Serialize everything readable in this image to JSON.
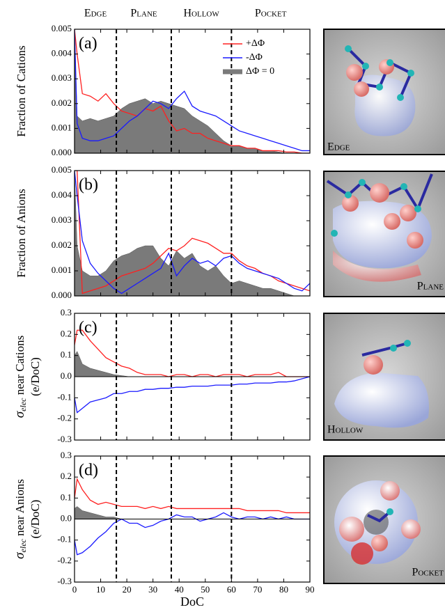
{
  "regions": {
    "labels": [
      "Edge",
      "Plane",
      "Hollow",
      "Pocket"
    ],
    "boundaries": [
      16,
      37,
      60
    ]
  },
  "images": [
    {
      "label": "Edge"
    },
    {
      "label": "Plane"
    },
    {
      "label": "Hollow"
    },
    {
      "label": "Pocket"
    }
  ],
  "chart_data": [
    {
      "type": "line",
      "panel_label": "(a)",
      "y_label": "Fraction of Cations",
      "legend": "upper right",
      "xlim": [
        0,
        90
      ],
      "xticks": [
        0,
        10,
        20,
        30,
        40,
        50,
        60,
        70,
        80,
        90
      ],
      "ylim": [
        0,
        0.005
      ],
      "yticks": [
        {
          "value": 0,
          "label": "0.000"
        },
        {
          "value": 0.001,
          "label": "0.001"
        },
        {
          "value": 0.002,
          "label": "0.002"
        },
        {
          "value": 0.003,
          "label": "0.003"
        },
        {
          "value": 0.004,
          "label": "0.004"
        },
        {
          "value": 0.005,
          "label": "0.005"
        }
      ],
      "x": [
        0,
        1,
        3,
        6,
        9,
        12,
        15,
        18,
        21,
        24,
        27,
        30,
        33,
        36,
        39,
        42,
        45,
        48,
        51,
        54,
        57,
        60,
        63,
        66,
        69,
        72,
        75,
        78,
        81,
        84,
        87,
        90
      ],
      "series": [
        {
          "name": "ΔΦ = 0",
          "kind": "area",
          "color": "#7a7a7a",
          "values": [
            0.005,
            0.0015,
            0.0013,
            0.0014,
            0.0013,
            0.0014,
            0.0015,
            0.0018,
            0.002,
            0.0021,
            0.0022,
            0.002,
            0.0021,
            0.002,
            0.0019,
            0.0018,
            0.0015,
            0.0013,
            0.0011,
            0.0008,
            0.0005,
            0.0003,
            0.0003,
            0.0002,
            0.0002,
            0.0001,
            0.0001,
            5e-05,
            0,
            0,
            0,
            0
          ]
        },
        {
          "name": "+ΔΦ",
          "kind": "line",
          "color": "#ff2020",
          "values": [
            0.005,
            0.004,
            0.0024,
            0.0023,
            0.0021,
            0.0024,
            0.002,
            0.0017,
            0.0016,
            0.0015,
            0.0018,
            0.0017,
            0.0019,
            0.0013,
            0.0009,
            0.001,
            0.0008,
            0.0008,
            0.0006,
            0.0005,
            0.0004,
            0.0003,
            0.0003,
            0.0002,
            0.0002,
            0.0001,
            0.0001,
            0.0001,
            5e-05,
            5e-05,
            0,
            0
          ]
        },
        {
          "name": "-ΔΦ",
          "kind": "line",
          "color": "#1a1aff",
          "values": [
            0.005,
            0.0012,
            0.0006,
            0.0005,
            0.0005,
            0.0006,
            0.0007,
            0.001,
            0.0013,
            0.0015,
            0.0018,
            0.0021,
            0.002,
            0.0018,
            0.0022,
            0.0025,
            0.0019,
            0.0017,
            0.0016,
            0.0015,
            0.0013,
            0.0011,
            0.0009,
            0.0008,
            0.0007,
            0.0006,
            0.0005,
            0.0004,
            0.0003,
            0.0002,
            0.0001,
            0.0001
          ]
        }
      ]
    },
    {
      "type": "line",
      "panel_label": "(b)",
      "y_label": "Fraction of Anions",
      "xlim": [
        0,
        90
      ],
      "xticks": [
        0,
        10,
        20,
        30,
        40,
        50,
        60,
        70,
        80,
        90
      ],
      "ylim": [
        0,
        0.005
      ],
      "yticks": [
        {
          "value": 0,
          "label": "0.000"
        },
        {
          "value": 0.001,
          "label": "0.001"
        },
        {
          "value": 0.002,
          "label": "0.002"
        },
        {
          "value": 0.003,
          "label": "0.003"
        },
        {
          "value": 0.004,
          "label": "0.004"
        },
        {
          "value": 0.005,
          "label": "0.005"
        }
      ],
      "x": [
        0,
        1,
        3,
        6,
        9,
        12,
        15,
        18,
        21,
        24,
        27,
        30,
        33,
        36,
        39,
        42,
        45,
        48,
        51,
        54,
        57,
        60,
        63,
        66,
        69,
        72,
        75,
        78,
        81,
        84,
        87,
        90
      ],
      "series": [
        {
          "kind": "area",
          "color": "#7a7a7a",
          "values": [
            0.005,
            0.002,
            0.001,
            0.0008,
            0.0008,
            0.001,
            0.0014,
            0.0016,
            0.0017,
            0.0019,
            0.002,
            0.002,
            0.0015,
            0.0012,
            0.0018,
            0.0015,
            0.0017,
            0.0012,
            0.001,
            0.0012,
            0.0008,
            0.0005,
            0.0006,
            0.0005,
            0.0004,
            0.0003,
            0.0003,
            0.0002,
            0.0001,
            0,
            0,
            0
          ]
        },
        {
          "kind": "line",
          "color": "#ff2020",
          "values": [
            0.005,
            0.005,
            0.0001,
            0.0002,
            0.0003,
            0.0004,
            0.0006,
            0.0008,
            0.0009,
            0.001,
            0.0011,
            0.0013,
            0.0016,
            0.0019,
            0.0018,
            0.002,
            0.0023,
            0.0022,
            0.0021,
            0.0019,
            0.0017,
            0.0017,
            0.0014,
            0.0012,
            0.0011,
            0.0009,
            0.0008,
            0.0006,
            0.0005,
            0.0004,
            0.0003,
            0.0002
          ]
        },
        {
          "kind": "line",
          "color": "#1a1aff",
          "values": [
            0.005,
            0.004,
            0.0022,
            0.0013,
            0.0009,
            0.0006,
            0.0003,
            0.0001,
            0.0003,
            0.0005,
            0.0007,
            0.0009,
            0.0011,
            0.0017,
            0.0008,
            0.0012,
            0.0015,
            0.0013,
            0.0014,
            0.0012,
            0.0015,
            0.0016,
            0.0013,
            0.0011,
            0.001,
            0.0009,
            0.0008,
            0.0007,
            0.0005,
            0.0003,
            0.0002,
            0.0005
          ]
        }
      ]
    },
    {
      "type": "line",
      "panel_label": "(c)",
      "y_label": {
        "symbol": "σ",
        "subscript": "elec",
        "text": " near Cations"
      },
      "y_label_units": "(e/DoC)",
      "xlim": [
        0,
        90
      ],
      "xticks": [
        0,
        10,
        20,
        30,
        40,
        50,
        60,
        70,
        80,
        90
      ],
      "ylim": [
        -0.3,
        0.3
      ],
      "yticks": [
        -0.3,
        -0.2,
        -0.1,
        {
          "value": 0,
          "label": "0.0"
        },
        0.1,
        0.2,
        0.3
      ],
      "x": [
        0,
        1,
        3,
        6,
        9,
        12,
        15,
        18,
        21,
        24,
        27,
        30,
        33,
        36,
        39,
        42,
        45,
        48,
        51,
        54,
        57,
        60,
        63,
        66,
        69,
        72,
        75,
        78,
        81,
        84,
        87,
        90
      ],
      "series": [
        {
          "kind": "area",
          "color": "#7a7a7a",
          "values": [
            0.1,
            0.12,
            0.06,
            0.04,
            0.03,
            0.02,
            0.01,
            0.005,
            0,
            0,
            0,
            0,
            0,
            0,
            0,
            0,
            0,
            0,
            0,
            0,
            0,
            0,
            0,
            0,
            0,
            0,
            0,
            0,
            0,
            0,
            0,
            0
          ]
        },
        {
          "kind": "line",
          "color": "#ff2020",
          "values": [
            0.15,
            0.22,
            0.22,
            0.17,
            0.13,
            0.09,
            0.07,
            0.05,
            0.04,
            0.02,
            0.01,
            0.01,
            0.01,
            0,
            0.01,
            0.01,
            0,
            0.01,
            0.01,
            0,
            0.01,
            0.01,
            0.01,
            0,
            0.01,
            0.01,
            0.01,
            0.02,
            0,
            0,
            0,
            0
          ]
        },
        {
          "kind": "line",
          "color": "#1a1aff",
          "values": [
            -0.1,
            -0.17,
            -0.15,
            -0.12,
            -0.11,
            -0.1,
            -0.08,
            -0.08,
            -0.07,
            -0.07,
            -0.06,
            -0.06,
            -0.055,
            -0.055,
            -0.05,
            -0.05,
            -0.045,
            -0.045,
            -0.045,
            -0.04,
            -0.04,
            -0.04,
            -0.035,
            -0.035,
            -0.03,
            -0.03,
            -0.03,
            -0.025,
            -0.025,
            -0.02,
            -0.01,
            0
          ]
        }
      ]
    },
    {
      "type": "line",
      "panel_label": "(d)",
      "y_label": {
        "symbol": "σ",
        "subscript": "elec",
        "text": " near Anions"
      },
      "y_label_units": "(e/DoC)",
      "x_label": "DoC",
      "xlim": [
        0,
        90
      ],
      "xticks": [
        0,
        10,
        20,
        30,
        40,
        50,
        60,
        70,
        80,
        90
      ],
      "ylim": [
        -0.3,
        0.3
      ],
      "yticks": [
        -0.3,
        -0.2,
        -0.1,
        {
          "value": 0,
          "label": "0.0"
        },
        0.1,
        0.2,
        0.3
      ],
      "x": [
        0,
        1,
        3,
        6,
        9,
        12,
        15,
        18,
        21,
        24,
        27,
        30,
        33,
        36,
        39,
        42,
        45,
        48,
        51,
        54,
        57,
        60,
        63,
        66,
        69,
        72,
        75,
        78,
        81,
        84,
        87,
        90
      ],
      "series": [
        {
          "kind": "area",
          "color": "#7a7a7a",
          "values": [
            0.05,
            0.06,
            0.04,
            0.03,
            0.02,
            0.01,
            0.01,
            0,
            0,
            0,
            0,
            0,
            0,
            0,
            0,
            0,
            0,
            0,
            0,
            0,
            0,
            0,
            0,
            0,
            0,
            0,
            0,
            0,
            0,
            0,
            0,
            0
          ]
        },
        {
          "kind": "line",
          "color": "#ff2020",
          "values": [
            0.1,
            0.19,
            0.14,
            0.09,
            0.07,
            0.08,
            0.07,
            0.06,
            0.06,
            0.06,
            0.05,
            0.06,
            0.05,
            0.06,
            0.05,
            0.05,
            0.05,
            0.05,
            0.05,
            0.05,
            0.05,
            0.05,
            0.05,
            0.04,
            0.04,
            0.04,
            0.04,
            0.04,
            0.03,
            0.03,
            0.03,
            0.03
          ]
        },
        {
          "kind": "line",
          "color": "#1a1aff",
          "values": [
            -0.1,
            -0.17,
            -0.16,
            -0.13,
            -0.09,
            -0.06,
            -0.02,
            0,
            -0.02,
            -0.02,
            -0.04,
            -0.03,
            -0.01,
            0,
            0.02,
            0.01,
            0.01,
            -0.01,
            0,
            0.01,
            0.03,
            0.01,
            0,
            0.01,
            0.01,
            0,
            0.01,
            0,
            0.01,
            0,
            0,
            0
          ]
        }
      ]
    }
  ]
}
